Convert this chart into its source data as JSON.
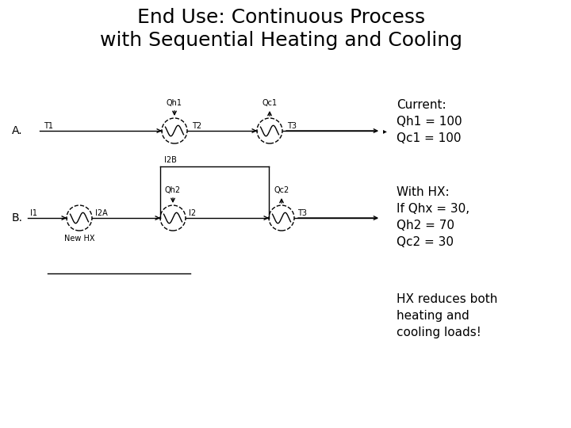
{
  "title": "End Use: Continuous Process\nwith Sequential Heating and Cooling",
  "title_fontsize": 18,
  "background_color": "#ffffff",
  "text_color": "#000000",
  "diagram_color": "#000000",
  "current_label": "Current:\nQh1 = 100\nQc1 = 100",
  "hx_label": "With HX:\nIf Qhx = 30,\nQh2 = 70\nQc2 = 30",
  "bottom_label": "HX reduces both\nheating and\ncooling loads!",
  "section_a_label": "A.",
  "section_b_label": "B.",
  "label_fontsize": 10,
  "small_fontsize": 7,
  "circle_r": 16
}
